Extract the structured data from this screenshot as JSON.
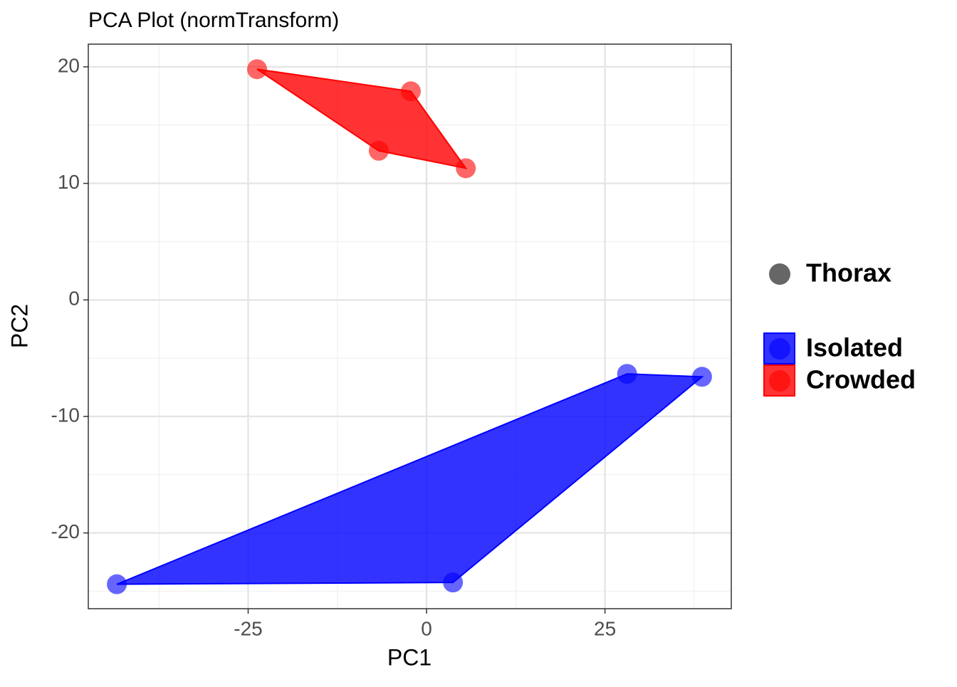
{
  "chart_data": {
    "type": "scatter",
    "title": "PCA Plot (normTransform)",
    "x_label": "PC1",
    "y_label": "PC2",
    "xlim": [
      -47.4,
      42.7
    ],
    "ylim": [
      -26.5,
      21.95
    ],
    "xticks": [
      -25,
      0,
      25
    ],
    "yticks": [
      -20,
      -10,
      0,
      10,
      20
    ],
    "x_minor_ticks": [
      -37.5,
      -12.5,
      12.5,
      37.5
    ],
    "y_minor_ticks": [
      -25,
      -15,
      -5,
      5,
      15
    ],
    "grid": true,
    "hull": true,
    "legend": "right",
    "shape_legend": {
      "label": "Thorax",
      "color": "#666666"
    },
    "series": [
      {
        "name": "Isolated",
        "color": "#0000ff",
        "x": [
          -43.4,
          3.7,
          38.6,
          28.1
        ],
        "values": [
          -24.4,
          -24.25,
          -6.6,
          -6.35
        ]
      },
      {
        "name": "Crowded",
        "color": "#ff0000",
        "x": [
          -23.75,
          -2.2,
          5.5,
          -6.7
        ],
        "values": [
          19.8,
          17.9,
          11.3,
          12.8
        ]
      }
    ]
  }
}
